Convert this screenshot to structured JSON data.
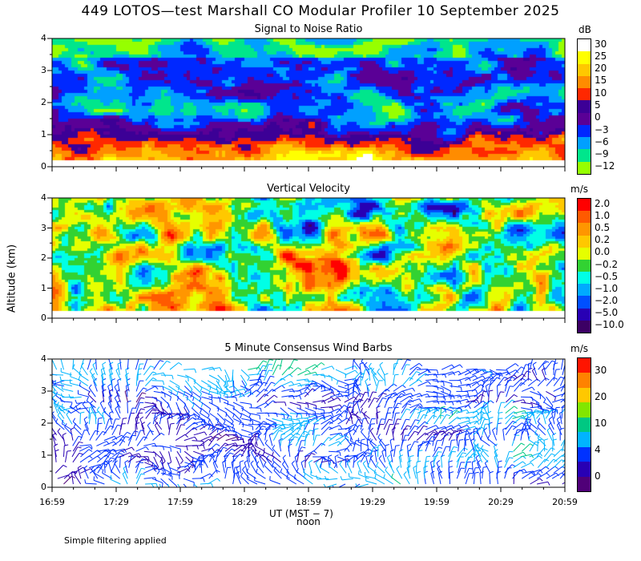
{
  "title": "449 LOTOS—test Marshall CO Modular Profiler 10 September 2025",
  "panels": [
    {
      "title": "Signal to Noise Ratio",
      "unit": "dB",
      "colorbar_labels": [
        "30",
        "25",
        "20",
        "15",
        "10",
        "5",
        "0",
        "−3",
        "−6",
        "−9",
        "−12"
      ],
      "colors": [
        "#ffffff",
        "#ffff00",
        "#ffc800",
        "#ff8c00",
        "#ff2800",
        "#3c0096",
        "#5a0096",
        "#0028ff",
        "#00a0ff",
        "#00e68c",
        "#96ff00"
      ]
    },
    {
      "title": "Vertical Velocity",
      "unit": "m/s",
      "colorbar_labels": [
        "2.0",
        "1.0",
        "0.5",
        "0.2",
        "0.0",
        "−0.2",
        "−0.5",
        "−1.0",
        "−2.0",
        "−5.0",
        "−10.0"
      ],
      "colors": [
        "#ff0000",
        "#ff5a00",
        "#ff9600",
        "#ffc800",
        "#e6ff00",
        "#32d232",
        "#00ffe6",
        "#00aaff",
        "#0050ff",
        "#2800b4",
        "#3c0064"
      ]
    },
    {
      "title": "5 Minute Consensus Wind Barbs",
      "unit": "m/s",
      "colorbar_labels": [
        "30",
        "20",
        "10",
        "4",
        "0"
      ],
      "colors": [
        "#ff1400",
        "#ff8200",
        "#ffc800",
        "#82e600",
        "#00c882",
        "#00b4ff",
        "#0032ff",
        "#2800b4",
        "#500078"
      ]
    }
  ],
  "y_ticks": [
    "4",
    "3",
    "2",
    "1",
    "0"
  ],
  "y_axis_label": "Altitude (km)",
  "x_ticks": [
    "16:59",
    "17:29",
    "17:59",
    "18:29",
    "18:59",
    "19:29",
    "19:59",
    "20:29",
    "20:59"
  ],
  "x_axis_label": "UT  (MST − 7)",
  "noon_label": "noon",
  "footnote": "Simple filtering applied",
  "chart_data": [
    {
      "type": "heatmap",
      "title": "Signal to Noise Ratio",
      "zlabel": "dB",
      "x": [
        "16:59",
        "17:29",
        "17:59",
        "18:29",
        "18:59",
        "19:29",
        "19:59",
        "20:29",
        "20:59"
      ],
      "ylabel": "Altitude (km)",
      "ylim": [
        0,
        4
      ],
      "valid_altitude_km": [
        0.25,
        4.0
      ],
      "zlevels": [
        -12,
        -9,
        -6,
        -3,
        0,
        5,
        10,
        15,
        20,
        25,
        30
      ],
      "description_values": {
        "near_surface_peak_db": 20,
        "upper_minimum_db": -9
      }
    },
    {
      "type": "heatmap",
      "title": "Vertical Velocity",
      "zlabel": "m/s",
      "x": [
        "16:59",
        "17:29",
        "17:59",
        "18:29",
        "18:59",
        "19:29",
        "19:59",
        "20:29",
        "20:59"
      ],
      "ylabel": "Altitude (km)",
      "ylim": [
        0,
        4
      ],
      "valid_altitude_km": [
        0.25,
        4.0
      ],
      "zlevels": [
        -10.0,
        -5.0,
        -2.0,
        -1.0,
        -0.5,
        -0.2,
        0.0,
        0.2,
        0.5,
        1.0,
        2.0
      ]
    },
    {
      "type": "scatter",
      "title": "5 Minute Consensus Wind Barbs",
      "zlabel": "m/s",
      "x": [
        "16:59",
        "17:29",
        "17:59",
        "18:29",
        "18:59",
        "19:29",
        "19:59",
        "20:29",
        "20:59"
      ],
      "ylabel": "Altitude (km)",
      "ylim": [
        0,
        4
      ],
      "zlevels": [
        0,
        4,
        10,
        20,
        30
      ],
      "barb_interval_minutes": 5
    }
  ]
}
